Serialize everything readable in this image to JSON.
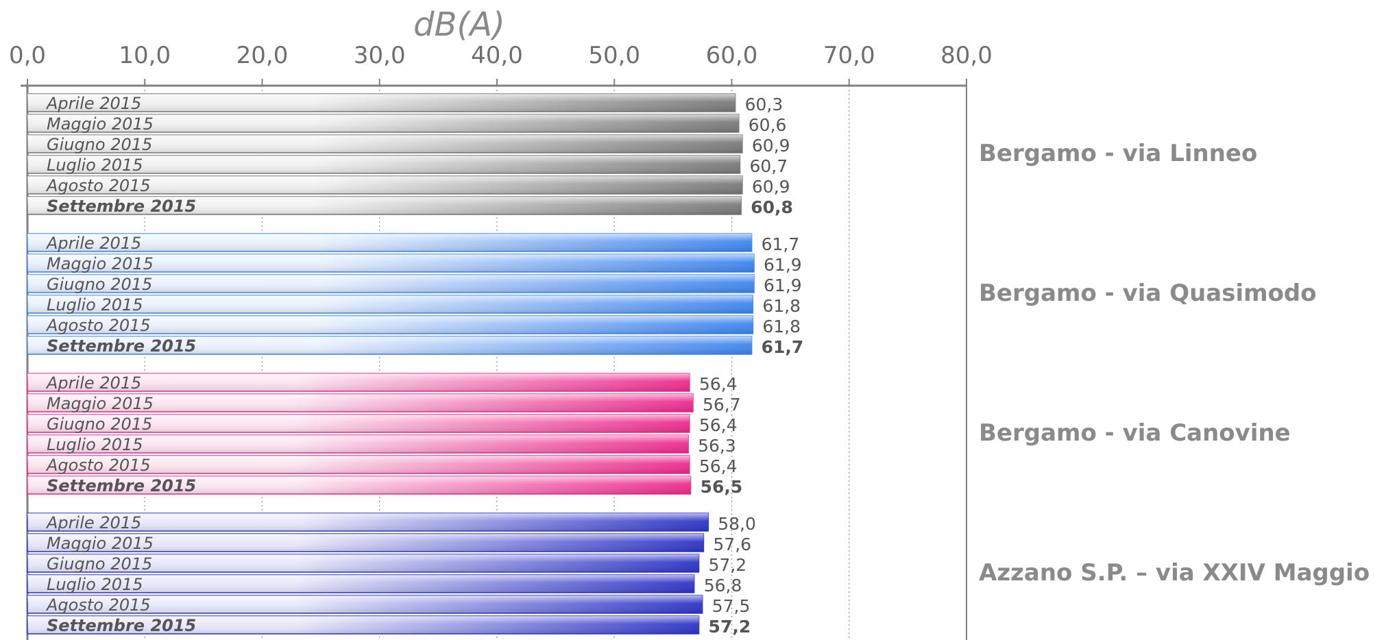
{
  "chart_data": {
    "type": "bar",
    "orientation": "horizontal",
    "unit_label": "dB(A)",
    "xlim": [
      0,
      80
    ],
    "x_ticks": [
      "0,0",
      "10,0",
      "20,0",
      "30,0",
      "40,0",
      "50,0",
      "60,0",
      "70,0",
      "80,0"
    ],
    "grid": "vertical-dotted",
    "groups": [
      {
        "name": "Bergamo - via Linneo",
        "color_dark": "#7a7a7a",
        "color_light": "#f2f2f2",
        "bars": [
          {
            "label": "Aprile 2015",
            "value": 60.3,
            "value_label": "60,3"
          },
          {
            "label": "Maggio 2015",
            "value": 60.6,
            "value_label": "60,6"
          },
          {
            "label": "Giugno 2015",
            "value": 60.9,
            "value_label": "60,9"
          },
          {
            "label": "Luglio 2015",
            "value": 60.7,
            "value_label": "60,7"
          },
          {
            "label": "Agosto 2015",
            "value": 60.9,
            "value_label": "60,9"
          },
          {
            "label": "Settembre 2015",
            "value": 60.8,
            "value_label": "60,8",
            "bold": true
          }
        ]
      },
      {
        "name": "Bergamo - via Quasimodo",
        "color_dark": "#3f86f0",
        "color_light": "#eaf2ff",
        "bars": [
          {
            "label": "Aprile 2015",
            "value": 61.7,
            "value_label": "61,7"
          },
          {
            "label": "Maggio 2015",
            "value": 61.9,
            "value_label": "61,9"
          },
          {
            "label": "Giugno 2015",
            "value": 61.9,
            "value_label": "61,9"
          },
          {
            "label": "Luglio 2015",
            "value": 61.8,
            "value_label": "61,8"
          },
          {
            "label": "Agosto 2015",
            "value": 61.8,
            "value_label": "61,8"
          },
          {
            "label": "Settembre 2015",
            "value": 61.7,
            "value_label": "61,7",
            "bold": true
          }
        ]
      },
      {
        "name": "Bergamo - via Canovine",
        "color_dark": "#ee2c8e",
        "color_light": "#fde6f1",
        "bars": [
          {
            "label": "Aprile 2015",
            "value": 56.4,
            "value_label": "56,4"
          },
          {
            "label": "Maggio 2015",
            "value": 56.7,
            "value_label": "56,7"
          },
          {
            "label": "Giugno 2015",
            "value": 56.4,
            "value_label": "56,4"
          },
          {
            "label": "Luglio 2015",
            "value": 56.3,
            "value_label": "56,3"
          },
          {
            "label": "Agosto 2015",
            "value": 56.4,
            "value_label": "56,4"
          },
          {
            "label": "Settembre 2015",
            "value": 56.5,
            "value_label": "56,5",
            "bold": true
          }
        ]
      },
      {
        "name": "Azzano S.P. – via XXIV Maggio",
        "color_dark": "#2f35c8",
        "color_light": "#e8e9fb",
        "bars": [
          {
            "label": "Aprile 2015",
            "value": 58.0,
            "value_label": "58,0"
          },
          {
            "label": "Maggio 2015",
            "value": 57.6,
            "value_label": "57,6"
          },
          {
            "label": "Giugno 2015",
            "value": 57.2,
            "value_label": "57,2"
          },
          {
            "label": "Luglio 2015",
            "value": 56.8,
            "value_label": "56,8"
          },
          {
            "label": "Agosto 2015",
            "value": 57.5,
            "value_label": "57,5"
          },
          {
            "label": "Settembre 2015",
            "value": 57.2,
            "value_label": "57,2",
            "bold": true
          }
        ]
      }
    ]
  }
}
